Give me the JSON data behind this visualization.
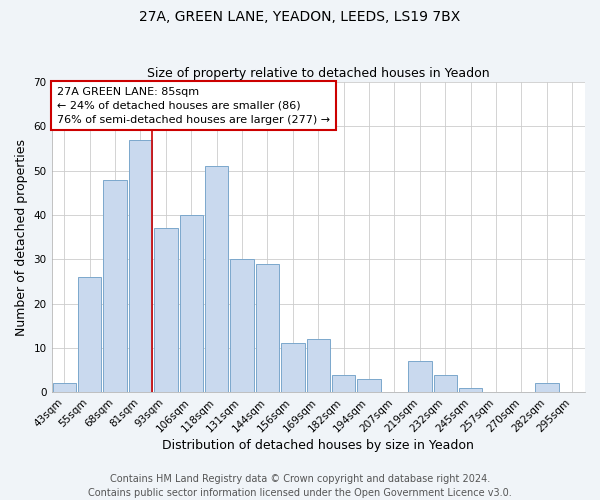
{
  "title1": "27A, GREEN LANE, YEADON, LEEDS, LS19 7BX",
  "title2": "Size of property relative to detached houses in Yeadon",
  "xlabel": "Distribution of detached houses by size in Yeadon",
  "ylabel": "Number of detached properties",
  "categories": [
    "43sqm",
    "55sqm",
    "68sqm",
    "81sqm",
    "93sqm",
    "106sqm",
    "118sqm",
    "131sqm",
    "144sqm",
    "156sqm",
    "169sqm",
    "182sqm",
    "194sqm",
    "207sqm",
    "219sqm",
    "232sqm",
    "245sqm",
    "257sqm",
    "270sqm",
    "282sqm",
    "295sqm"
  ],
  "values": [
    2,
    26,
    48,
    57,
    37,
    40,
    51,
    30,
    29,
    11,
    12,
    4,
    3,
    0,
    7,
    4,
    1,
    0,
    0,
    2,
    0
  ],
  "bar_color": "#c9d9ee",
  "bar_edge_color": "#7ba7cc",
  "figure_bg_color": "#f0f4f8",
  "plot_bg_color": "#ffffff",
  "vline_index": 3,
  "vline_color": "#cc0000",
  "annotation_text": "27A GREEN LANE: 85sqm\n← 24% of detached houses are smaller (86)\n76% of semi-detached houses are larger (277) →",
  "annotation_box_facecolor": "#ffffff",
  "annotation_box_edgecolor": "#cc0000",
  "ylim": [
    0,
    70
  ],
  "yticks": [
    0,
    10,
    20,
    30,
    40,
    50,
    60,
    70
  ],
  "footnote": "Contains HM Land Registry data © Crown copyright and database right 2024.\nContains public sector information licensed under the Open Government Licence v3.0.",
  "title_fontsize": 10,
  "subtitle_fontsize": 9,
  "axis_label_fontsize": 9,
  "tick_fontsize": 7.5,
  "annotation_fontsize": 8,
  "footnote_fontsize": 7
}
